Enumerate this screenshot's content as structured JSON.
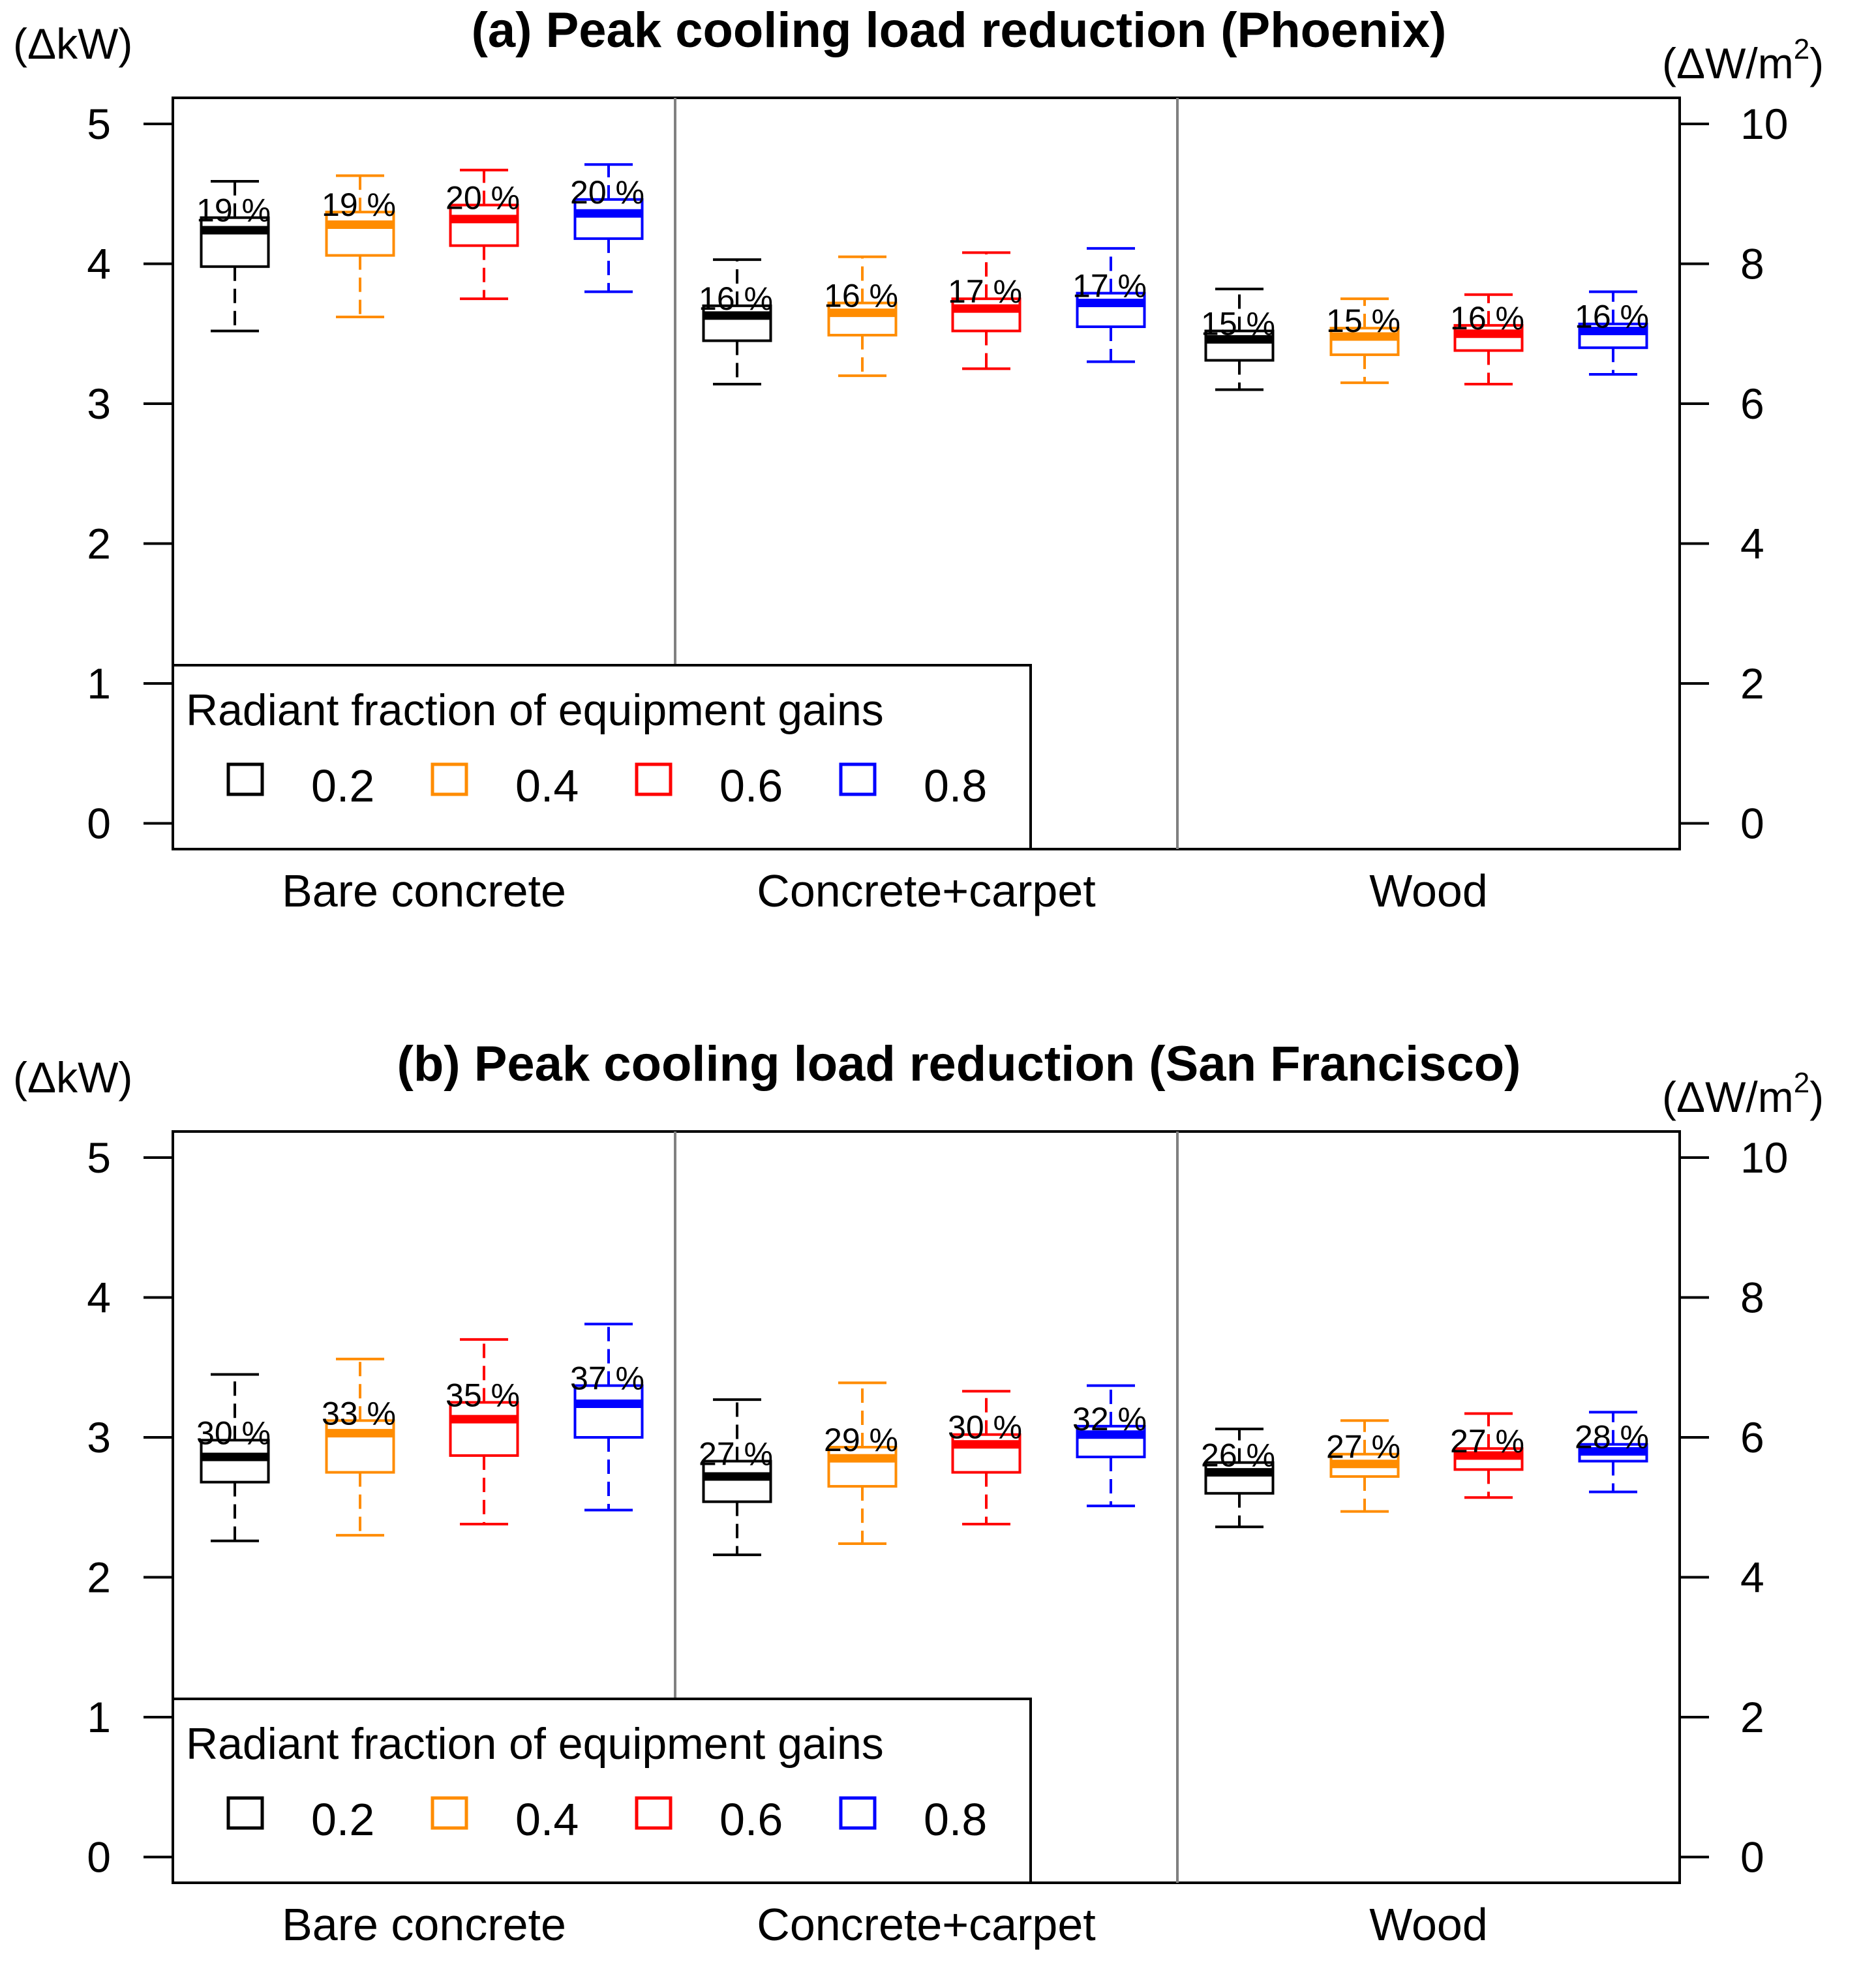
{
  "colors": {
    "fraction_0_2": "#000000",
    "fraction_0_4": "#FF8C00",
    "fraction_0_6": "#FF0000",
    "fraction_0_8": "#0000FF",
    "divider": "#808080"
  },
  "chart_data": [
    {
      "type": "box",
      "panel": "a",
      "title": "(a) Peak cooling load reduction (Phoenix)",
      "ylabel_left": "(ΔkW)",
      "ylabel_right_main": "(ΔW/m",
      "ylabel_right_sup": "2",
      "ylabel_right_close": ")",
      "ylim": [
        0,
        5
      ],
      "yticks_left": [
        "0",
        "1",
        "2",
        "3",
        "4",
        "5"
      ],
      "ylim_right": [
        0,
        10
      ],
      "yticks_right": [
        "0",
        "2",
        "4",
        "6",
        "8",
        "10"
      ],
      "categories": [
        "Bare concrete",
        "Concrete+carpet",
        "Wood"
      ],
      "legend": {
        "title": "Radiant fraction of equipment gains",
        "entries": [
          "0.2",
          "0.4",
          "0.6",
          "0.8"
        ],
        "placement": "bottom-left"
      },
      "series": [
        {
          "name": "0.2",
          "boxes": [
            {
              "min": 3.52,
              "q1": 3.98,
              "median": 4.24,
              "q3": 4.33,
              "max": 4.59,
              "label": "19 %"
            },
            {
              "min": 3.14,
              "q1": 3.45,
              "median": 3.63,
              "q3": 3.7,
              "max": 4.03,
              "label": "16 %"
            },
            {
              "min": 3.1,
              "q1": 3.31,
              "median": 3.46,
              "q3": 3.52,
              "max": 3.82,
              "label": "15 %"
            }
          ]
        },
        {
          "name": "0.4",
          "boxes": [
            {
              "min": 3.62,
              "q1": 4.06,
              "median": 4.28,
              "q3": 4.37,
              "max": 4.63,
              "label": "19 %"
            },
            {
              "min": 3.2,
              "q1": 3.49,
              "median": 3.65,
              "q3": 3.72,
              "max": 4.05,
              "label": "16 %"
            },
            {
              "min": 3.15,
              "q1": 3.35,
              "median": 3.48,
              "q3": 3.54,
              "max": 3.75,
              "label": "15 %"
            }
          ]
        },
        {
          "name": "0.6",
          "boxes": [
            {
              "min": 3.75,
              "q1": 4.13,
              "median": 4.32,
              "q3": 4.42,
              "max": 4.67,
              "label": "20 %"
            },
            {
              "min": 3.25,
              "q1": 3.52,
              "median": 3.68,
              "q3": 3.75,
              "max": 4.08,
              "label": "17 %"
            },
            {
              "min": 3.14,
              "q1": 3.38,
              "median": 3.5,
              "q3": 3.56,
              "max": 3.78,
              "label": "16 %"
            }
          ]
        },
        {
          "name": "0.8",
          "boxes": [
            {
              "min": 3.8,
              "q1": 4.18,
              "median": 4.36,
              "q3": 4.46,
              "max": 4.71,
              "label": "20 %"
            },
            {
              "min": 3.3,
              "q1": 3.55,
              "median": 3.72,
              "q3": 3.79,
              "max": 4.11,
              "label": "17 %"
            },
            {
              "min": 3.21,
              "q1": 3.4,
              "median": 3.52,
              "q3": 3.57,
              "max": 3.8,
              "label": "16 %"
            }
          ]
        }
      ]
    },
    {
      "type": "box",
      "panel": "b",
      "title": "(b) Peak cooling load reduction (San Francisco)",
      "ylabel_left": "(ΔkW)",
      "ylabel_right_main": "(ΔW/m",
      "ylabel_right_sup": "2",
      "ylabel_right_close": ")",
      "ylim": [
        0,
        5
      ],
      "yticks_left": [
        "0",
        "1",
        "2",
        "3",
        "4",
        "5"
      ],
      "ylim_right": [
        0,
        10
      ],
      "yticks_right": [
        "0",
        "2",
        "4",
        "6",
        "8",
        "10"
      ],
      "categories": [
        "Bare concrete",
        "Concrete+carpet",
        "Wood"
      ],
      "legend": {
        "title": "Radiant fraction of equipment gains",
        "entries": [
          "0.2",
          "0.4",
          "0.6",
          "0.8"
        ],
        "placement": "bottom-left"
      },
      "series": [
        {
          "name": "0.2",
          "boxes": [
            {
              "min": 2.26,
              "q1": 2.68,
              "median": 2.86,
              "q3": 2.98,
              "max": 3.45,
              "label": "30 %"
            },
            {
              "min": 2.16,
              "q1": 2.54,
              "median": 2.72,
              "q3": 2.83,
              "max": 3.27,
              "label": "27 %"
            },
            {
              "min": 2.36,
              "q1": 2.6,
              "median": 2.75,
              "q3": 2.82,
              "max": 3.06,
              "label": "26 %"
            }
          ]
        },
        {
          "name": "0.4",
          "boxes": [
            {
              "min": 2.3,
              "q1": 2.75,
              "median": 3.03,
              "q3": 3.12,
              "max": 3.56,
              "label": "33 %"
            },
            {
              "min": 2.24,
              "q1": 2.65,
              "median": 2.85,
              "q3": 2.93,
              "max": 3.39,
              "label": "29 %"
            },
            {
              "min": 2.47,
              "q1": 2.72,
              "median": 2.81,
              "q3": 2.88,
              "max": 3.12,
              "label": "27 %"
            }
          ]
        },
        {
          "name": "0.6",
          "boxes": [
            {
              "min": 2.38,
              "q1": 2.87,
              "median": 3.13,
              "q3": 3.25,
              "max": 3.7,
              "label": "35 %"
            },
            {
              "min": 2.38,
              "q1": 2.75,
              "median": 2.95,
              "q3": 3.02,
              "max": 3.33,
              "label": "30 %"
            },
            {
              "min": 2.57,
              "q1": 2.77,
              "median": 2.87,
              "q3": 2.92,
              "max": 3.17,
              "label": "27 %"
            }
          ]
        },
        {
          "name": "0.8",
          "boxes": [
            {
              "min": 2.48,
              "q1": 3.0,
              "median": 3.24,
              "q3": 3.37,
              "max": 3.81,
              "label": "37 %"
            },
            {
              "min": 2.51,
              "q1": 2.86,
              "median": 3.02,
              "q3": 3.08,
              "max": 3.37,
              "label": "32 %"
            },
            {
              "min": 2.61,
              "q1": 2.83,
              "median": 2.9,
              "q3": 2.95,
              "max": 3.18,
              "label": "28 %"
            }
          ]
        }
      ]
    }
  ]
}
